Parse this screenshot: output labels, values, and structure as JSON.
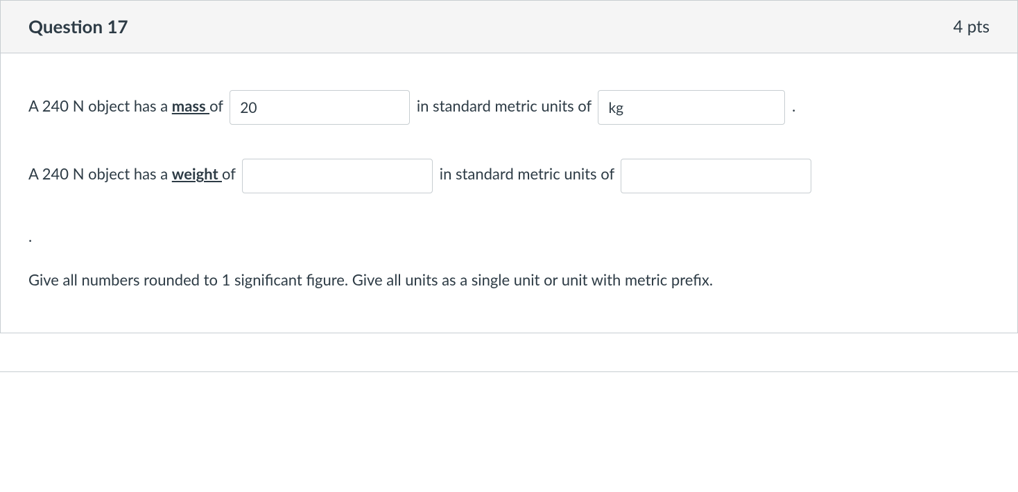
{
  "header": {
    "title": "Question 17",
    "points": "4 pts"
  },
  "line1": {
    "pre": "A 240 N object has a ",
    "emphasis": "mass ",
    "mid1": "of ",
    "input1_value": "20",
    "mid2": " in standard metric units of ",
    "input2_value": "kg",
    "post": " ."
  },
  "line2": {
    "pre": "A 240 N object has a ",
    "emphasis": "weight ",
    "mid1": "of ",
    "input1_value": "",
    "mid2": " in standard metric units of ",
    "input2_value": ""
  },
  "period": ".",
  "instructions": "Give all numbers rounded to 1 significant figure.  Give all units as a single unit or unit with metric prefix."
}
